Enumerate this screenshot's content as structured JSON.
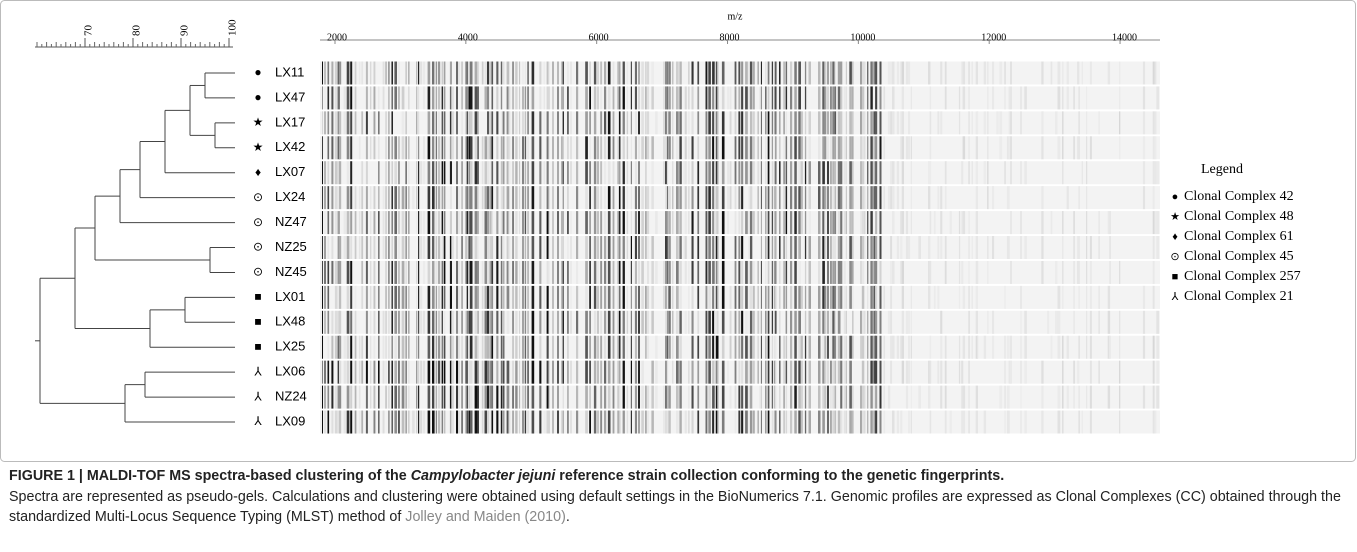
{
  "dendrogram": {
    "ticks": [
      70,
      80,
      90,
      100
    ]
  },
  "gel": {
    "axis_label": "m/z",
    "ticks": [
      2000,
      4000,
      6000,
      8000,
      10000,
      12000,
      14000
    ]
  },
  "strains": [
    {
      "symbol": "●",
      "label": "LX11"
    },
    {
      "symbol": "●",
      "label": "LX47"
    },
    {
      "symbol": "★",
      "label": "LX17"
    },
    {
      "symbol": "★",
      "label": "LX42"
    },
    {
      "symbol": "♦",
      "label": "LX07"
    },
    {
      "symbol": "⊙",
      "label": "LX24"
    },
    {
      "symbol": "⊙",
      "label": "NZ47"
    },
    {
      "symbol": "⊙",
      "label": "NZ25"
    },
    {
      "symbol": "⊙",
      "label": "NZ45"
    },
    {
      "symbol": "■",
      "label": "LX01"
    },
    {
      "symbol": "■",
      "label": "LX48"
    },
    {
      "symbol": "■",
      "label": "LX25"
    },
    {
      "symbol": "⅄",
      "label": "LX06"
    },
    {
      "symbol": "⅄",
      "label": "NZ24"
    },
    {
      "symbol": "⅄",
      "label": "LX09"
    }
  ],
  "legend": {
    "title": "Legend",
    "items": [
      {
        "symbol": "●",
        "label": "Clonal Complex 42"
      },
      {
        "symbol": "★",
        "label": "Clonal Complex 48"
      },
      {
        "symbol": "♦",
        "label": "Clonal Complex 61"
      },
      {
        "symbol": "⊙",
        "label": "Clonal Complex 45"
      },
      {
        "symbol": "■",
        "label": "Clonal Complex 257"
      },
      {
        "symbol": "⅄",
        "label": "Clonal Complex 21"
      }
    ]
  },
  "caption": {
    "title_start": "FIGURE 1 | MALDI-TOF MS spectra-based clustering of the ",
    "title_italic": "Campylobacter jejuni",
    "title_end": " reference strain collection conforming to the genetic fingerprints.",
    "body": "Spectra are represented as pseudo-gels. Calculations and clustering were obtained using default settings in the BioNumerics 7.1. Genomic profiles are expressed as Clonal Complexes (CC) obtained through the standardized Multi-Locus Sequence Typing (MLST) method of ",
    "citation": "Jolley and Maiden (2010)",
    "end": "."
  }
}
